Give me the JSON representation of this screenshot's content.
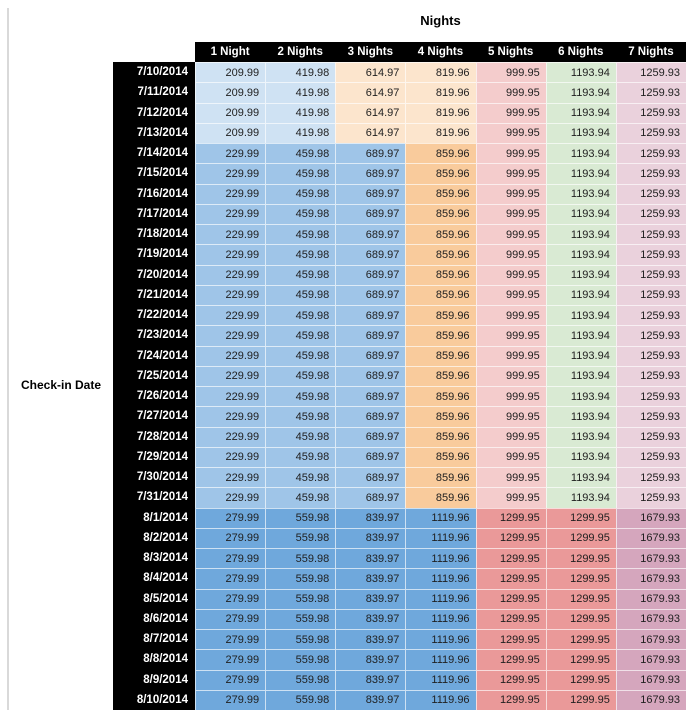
{
  "chart_data": {
    "type": "table",
    "title": "Nights",
    "row_label": "Check-in Date",
    "columns": [
      "1 Night",
      "2 Nights",
      "3 Nights",
      "4 Nights",
      "5 Nights",
      "6 Nights",
      "7 Nights"
    ],
    "palette": {
      "blue_light": "#cfe2f3",
      "blue_mid": "#9fc5e8",
      "blue_dark": "#6fa8dc",
      "orange_light": "#fce5cd",
      "orange_mid": "#f9cb9c",
      "pink_light": "#f4cccc",
      "red_mid": "#ea9999",
      "green_light": "#d9ead3",
      "purple_light": "#ead1dc",
      "purple_mid": "#d5a6bd",
      "header_bg": "#000000",
      "header_text": "#ffffff",
      "edge_rule": "#d9d9d9"
    },
    "bands": {
      "early": [
        "blue_light",
        "blue_light",
        "orange_light",
        "orange_light",
        "pink_light",
        "green_light",
        "purple_light"
      ],
      "mid": [
        "blue_mid",
        "blue_mid",
        "blue_mid",
        "orange_mid",
        "pink_light",
        "green_light",
        "purple_light"
      ],
      "late": [
        "blue_dark",
        "blue_dark",
        "blue_dark",
        "blue_dark",
        "red_mid",
        "red_mid",
        "purple_mid"
      ]
    },
    "rows": [
      {
        "date": "7/10/2014",
        "band": "early",
        "values": [
          "209.99",
          "419.98",
          "614.97",
          "819.96",
          "999.95",
          "1193.94",
          "1259.93"
        ]
      },
      {
        "date": "7/11/2014",
        "band": "early",
        "values": [
          "209.99",
          "419.98",
          "614.97",
          "819.96",
          "999.95",
          "1193.94",
          "1259.93"
        ]
      },
      {
        "date": "7/12/2014",
        "band": "early",
        "values": [
          "209.99",
          "419.98",
          "614.97",
          "819.96",
          "999.95",
          "1193.94",
          "1259.93"
        ]
      },
      {
        "date": "7/13/2014",
        "band": "early",
        "values": [
          "209.99",
          "419.98",
          "614.97",
          "819.96",
          "999.95",
          "1193.94",
          "1259.93"
        ]
      },
      {
        "date": "7/14/2014",
        "band": "mid",
        "values": [
          "229.99",
          "459.98",
          "689.97",
          "859.96",
          "999.95",
          "1193.94",
          "1259.93"
        ]
      },
      {
        "date": "7/15/2014",
        "band": "mid",
        "values": [
          "229.99",
          "459.98",
          "689.97",
          "859.96",
          "999.95",
          "1193.94",
          "1259.93"
        ]
      },
      {
        "date": "7/16/2014",
        "band": "mid",
        "values": [
          "229.99",
          "459.98",
          "689.97",
          "859.96",
          "999.95",
          "1193.94",
          "1259.93"
        ]
      },
      {
        "date": "7/17/2014",
        "band": "mid",
        "values": [
          "229.99",
          "459.98",
          "689.97",
          "859.96",
          "999.95",
          "1193.94",
          "1259.93"
        ]
      },
      {
        "date": "7/18/2014",
        "band": "mid",
        "values": [
          "229.99",
          "459.98",
          "689.97",
          "859.96",
          "999.95",
          "1193.94",
          "1259.93"
        ]
      },
      {
        "date": "7/19/2014",
        "band": "mid",
        "values": [
          "229.99",
          "459.98",
          "689.97",
          "859.96",
          "999.95",
          "1193.94",
          "1259.93"
        ]
      },
      {
        "date": "7/20/2014",
        "band": "mid",
        "values": [
          "229.99",
          "459.98",
          "689.97",
          "859.96",
          "999.95",
          "1193.94",
          "1259.93"
        ]
      },
      {
        "date": "7/21/2014",
        "band": "mid",
        "values": [
          "229.99",
          "459.98",
          "689.97",
          "859.96",
          "999.95",
          "1193.94",
          "1259.93"
        ]
      },
      {
        "date": "7/22/2014",
        "band": "mid",
        "values": [
          "229.99",
          "459.98",
          "689.97",
          "859.96",
          "999.95",
          "1193.94",
          "1259.93"
        ]
      },
      {
        "date": "7/23/2014",
        "band": "mid",
        "values": [
          "229.99",
          "459.98",
          "689.97",
          "859.96",
          "999.95",
          "1193.94",
          "1259.93"
        ]
      },
      {
        "date": "7/24/2014",
        "band": "mid",
        "values": [
          "229.99",
          "459.98",
          "689.97",
          "859.96",
          "999.95",
          "1193.94",
          "1259.93"
        ]
      },
      {
        "date": "7/25/2014",
        "band": "mid",
        "values": [
          "229.99",
          "459.98",
          "689.97",
          "859.96",
          "999.95",
          "1193.94",
          "1259.93"
        ]
      },
      {
        "date": "7/26/2014",
        "band": "mid",
        "values": [
          "229.99",
          "459.98",
          "689.97",
          "859.96",
          "999.95",
          "1193.94",
          "1259.93"
        ]
      },
      {
        "date": "7/27/2014",
        "band": "mid",
        "values": [
          "229.99",
          "459.98",
          "689.97",
          "859.96",
          "999.95",
          "1193.94",
          "1259.93"
        ]
      },
      {
        "date": "7/28/2014",
        "band": "mid",
        "values": [
          "229.99",
          "459.98",
          "689.97",
          "859.96",
          "999.95",
          "1193.94",
          "1259.93"
        ]
      },
      {
        "date": "7/29/2014",
        "band": "mid",
        "values": [
          "229.99",
          "459.98",
          "689.97",
          "859.96",
          "999.95",
          "1193.94",
          "1259.93"
        ]
      },
      {
        "date": "7/30/2014",
        "band": "mid",
        "values": [
          "229.99",
          "459.98",
          "689.97",
          "859.96",
          "999.95",
          "1193.94",
          "1259.93"
        ]
      },
      {
        "date": "7/31/2014",
        "band": "mid",
        "values": [
          "229.99",
          "459.98",
          "689.97",
          "859.96",
          "999.95",
          "1193.94",
          "1259.93"
        ]
      },
      {
        "date": "8/1/2014",
        "band": "late",
        "values": [
          "279.99",
          "559.98",
          "839.97",
          "1119.96",
          "1299.95",
          "1299.95",
          "1679.93"
        ]
      },
      {
        "date": "8/2/2014",
        "band": "late",
        "values": [
          "279.99",
          "559.98",
          "839.97",
          "1119.96",
          "1299.95",
          "1299.95",
          "1679.93"
        ]
      },
      {
        "date": "8/3/2014",
        "band": "late",
        "values": [
          "279.99",
          "559.98",
          "839.97",
          "1119.96",
          "1299.95",
          "1299.95",
          "1679.93"
        ]
      },
      {
        "date": "8/4/2014",
        "band": "late",
        "values": [
          "279.99",
          "559.98",
          "839.97",
          "1119.96",
          "1299.95",
          "1299.95",
          "1679.93"
        ]
      },
      {
        "date": "8/5/2014",
        "band": "late",
        "values": [
          "279.99",
          "559.98",
          "839.97",
          "1119.96",
          "1299.95",
          "1299.95",
          "1679.93"
        ]
      },
      {
        "date": "8/6/2014",
        "band": "late",
        "values": [
          "279.99",
          "559.98",
          "839.97",
          "1119.96",
          "1299.95",
          "1299.95",
          "1679.93"
        ]
      },
      {
        "date": "8/7/2014",
        "band": "late",
        "values": [
          "279.99",
          "559.98",
          "839.97",
          "1119.96",
          "1299.95",
          "1299.95",
          "1679.93"
        ]
      },
      {
        "date": "8/8/2014",
        "band": "late",
        "values": [
          "279.99",
          "559.98",
          "839.97",
          "1119.96",
          "1299.95",
          "1299.95",
          "1679.93"
        ]
      },
      {
        "date": "8/9/2014",
        "band": "late",
        "values": [
          "279.99",
          "559.98",
          "839.97",
          "1119.96",
          "1299.95",
          "1299.95",
          "1679.93"
        ]
      },
      {
        "date": "8/10/2014",
        "band": "late",
        "values": [
          "279.99",
          "559.98",
          "839.97",
          "1119.96",
          "1299.95",
          "1299.95",
          "1679.93"
        ]
      }
    ]
  }
}
